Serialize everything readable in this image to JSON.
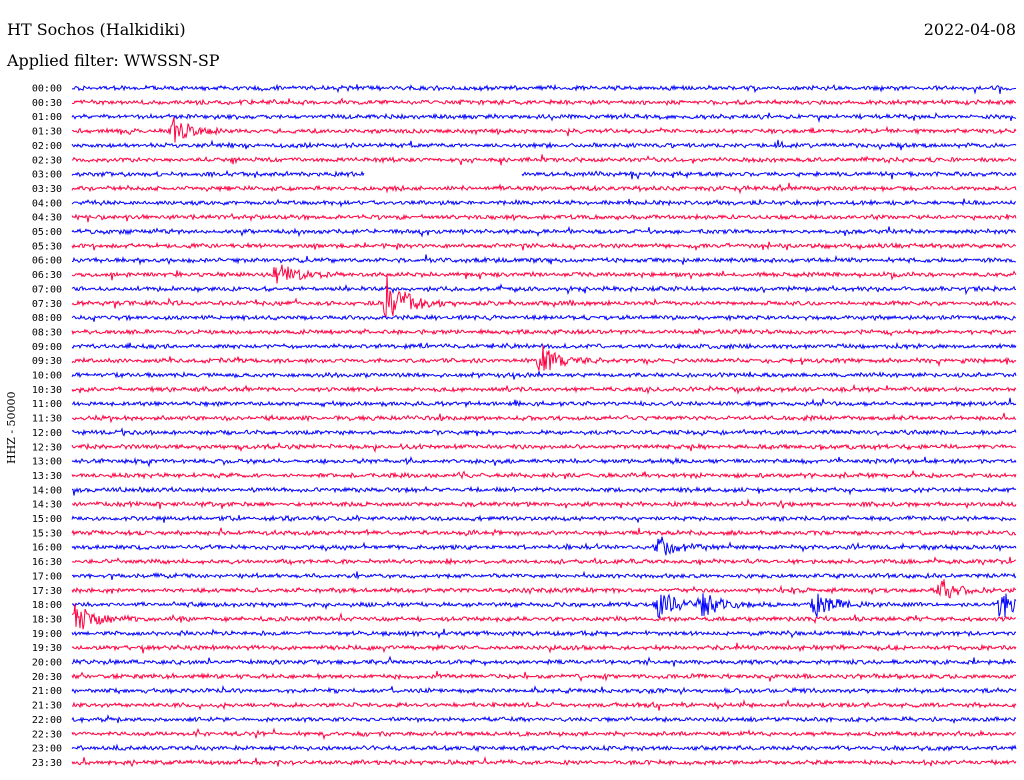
{
  "header": {
    "station": "HT Sochos (Halkidiki)",
    "date": "2022-04-08",
    "filter": "Applied filter: WWSSN-SP"
  },
  "chart_data": {
    "type": "line",
    "title": "HT Sochos (Halkidiki)",
    "subtitle": "Applied filter: WWSSN-SP",
    "ylabel": "HHZ - 50000",
    "xlabel": "",
    "grid": false,
    "legend": "none",
    "series_colors": [
      "#0000ff",
      "#ff0040"
    ],
    "rows": [
      "00:00",
      "00:30",
      "01:00",
      "01:30",
      "02:00",
      "02:30",
      "03:00",
      "03:30",
      "04:00",
      "04:30",
      "05:00",
      "05:30",
      "06:00",
      "06:30",
      "07:00",
      "07:30",
      "08:00",
      "08:30",
      "09:00",
      "09:30",
      "10:00",
      "10:30",
      "11:00",
      "11:30",
      "12:00",
      "12:30",
      "13:00",
      "13:30",
      "14:00",
      "14:30",
      "15:00",
      "15:30",
      "16:00",
      "16:30",
      "17:00",
      "17:30",
      "18:00",
      "18:30",
      "19:00",
      "19:30",
      "20:00",
      "20:30",
      "21:00",
      "21:30",
      "22:00",
      "22:30",
      "23:00",
      "23:30"
    ],
    "row_minutes": 30,
    "data_gap": {
      "row": "03:00",
      "start_min": 9.3,
      "end_min": 14.3
    },
    "events": [
      {
        "row": "01:30",
        "minute": 3.2,
        "amplitude": 14
      },
      {
        "row": "06:30",
        "minute": 6.5,
        "amplitude": 11
      },
      {
        "row": "07:30",
        "minute": 10.0,
        "amplitude": 28
      },
      {
        "row": "09:30",
        "minute": 14.9,
        "amplitude": 16
      },
      {
        "row": "16:00",
        "minute": 18.6,
        "amplitude": 12
      },
      {
        "row": "17:30",
        "minute": 27.6,
        "amplitude": 10
      },
      {
        "row": "18:00",
        "minute": 18.6,
        "amplitude": 14
      },
      {
        "row": "18:00",
        "minute": 20.0,
        "amplitude": 12
      },
      {
        "row": "18:00",
        "minute": 23.6,
        "amplitude": 12
      },
      {
        "row": "18:00",
        "minute": 29.5,
        "amplitude": 14
      },
      {
        "row": "18:30",
        "minute": 0.1,
        "amplitude": 14
      }
    ]
  }
}
